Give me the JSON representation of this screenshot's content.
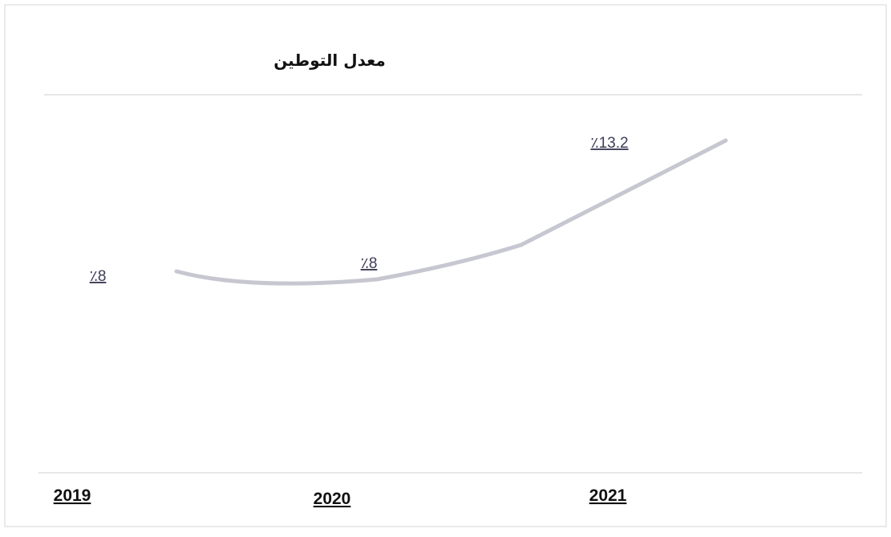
{
  "chart_data": {
    "type": "line",
    "title": "معدل التوطين",
    "categories": [
      "2019",
      "2020",
      "2021"
    ],
    "series": [
      {
        "values": [
          8,
          8,
          13.2
        ]
      }
    ],
    "data_labels": [
      "٪8",
      "٪8",
      "٪13.2"
    ],
    "xlabel": "",
    "ylabel": "",
    "grid": false,
    "legend": "none",
    "line_color": "#c7c7d1",
    "label_color": "#3d3d57"
  }
}
